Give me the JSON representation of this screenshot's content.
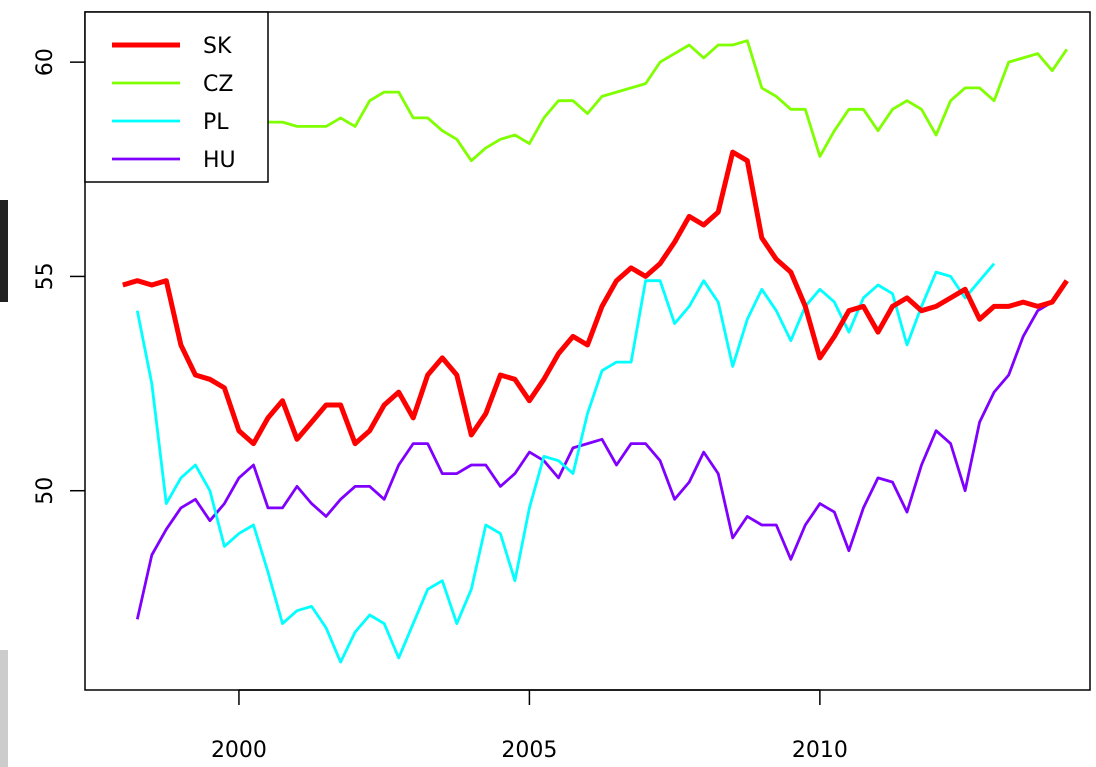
{
  "chart_data": {
    "type": "line",
    "x": [
      1998,
      1998.25,
      1998.5,
      1998.75,
      1999,
      1999.25,
      1999.5,
      1999.75,
      2000,
      2000.25,
      2000.5,
      2000.75,
      2001,
      2001.25,
      2001.5,
      2001.75,
      2002,
      2002.25,
      2002.5,
      2002.75,
      2003,
      2003.25,
      2003.5,
      2003.75,
      2004,
      2004.25,
      2004.5,
      2004.75,
      2005,
      2005.25,
      2005.5,
      2005.75,
      2006,
      2006.25,
      2006.5,
      2006.75,
      2007,
      2007.25,
      2007.5,
      2007.75,
      2008,
      2008.25,
      2008.5,
      2008.75,
      2009,
      2009.25,
      2009.5,
      2009.75,
      2010,
      2010.25,
      2010.5,
      2010.75,
      2011,
      2011.25,
      2011.5,
      2011.75,
      2012,
      2012.25,
      2012.5,
      2012.75,
      2013,
      2013.25,
      2013.5,
      2013.75,
      2014,
      2014.25
    ],
    "series": [
      {
        "name": "SK",
        "color": "#ff0000",
        "values": [
          54.8,
          54.9,
          54.8,
          54.9,
          53.4,
          52.7,
          52.6,
          52.4,
          51.4,
          51.1,
          51.7,
          52.1,
          51.2,
          51.6,
          52.0,
          52.0,
          51.1,
          51.4,
          52.0,
          52.3,
          51.7,
          52.7,
          53.1,
          52.7,
          51.3,
          51.8,
          52.7,
          52.6,
          52.1,
          52.6,
          53.2,
          53.6,
          53.4,
          54.3,
          54.9,
          55.2,
          55.0,
          55.3,
          55.8,
          56.4,
          56.2,
          56.5,
          57.9,
          57.7,
          55.9,
          55.4,
          55.1,
          54.3,
          53.1,
          53.6,
          54.2,
          54.3,
          53.7,
          54.3,
          54.5,
          54.2,
          54.3,
          54.5,
          54.7,
          54.0,
          54.3,
          54.3,
          54.4,
          54.3,
          54.4,
          54.9
        ]
      },
      {
        "name": "CZ",
        "color": "#7fff00",
        "values": [
          58.6,
          58.7,
          58.6,
          58.5,
          58.4,
          58.5,
          58.6,
          58.6,
          58.6,
          58.6,
          58.6,
          58.6,
          58.5,
          58.5,
          58.5,
          58.7,
          58.5,
          59.1,
          59.3,
          59.3,
          58.7,
          58.7,
          58.4,
          58.2,
          57.7,
          58.0,
          58.2,
          58.3,
          58.1,
          58.7,
          59.1,
          59.1,
          58.8,
          59.2,
          59.3,
          59.4,
          59.5,
          60.0,
          60.2,
          60.4,
          60.1,
          60.4,
          60.4,
          60.5,
          59.4,
          59.2,
          58.9,
          58.9,
          57.8,
          58.4,
          58.9,
          58.9,
          58.4,
          58.9,
          59.1,
          58.9,
          58.3,
          59.1,
          59.4,
          59.4,
          59.1,
          60.0,
          60.1,
          60.2,
          59.8,
          60.3
        ]
      },
      {
        "name": "PL",
        "color": "#00ffff",
        "values": [
          null,
          54.2,
          52.5,
          49.7,
          50.3,
          50.6,
          50.0,
          48.7,
          49.0,
          49.2,
          48.1,
          46.9,
          47.2,
          47.3,
          46.8,
          46.0,
          46.7,
          47.1,
          46.9,
          46.1,
          46.9,
          47.7,
          47.9,
          46.9,
          47.7,
          49.2,
          49.0,
          47.9,
          49.6,
          50.8,
          50.7,
          50.4,
          51.8,
          52.8,
          53.0,
          53.0,
          54.9,
          54.9,
          53.9,
          54.3,
          54.9,
          54.4,
          52.9,
          54.0,
          54.7,
          54.2,
          53.5,
          54.3,
          54.7,
          54.4,
          53.7,
          54.5,
          54.8,
          54.6,
          53.4,
          54.3,
          55.1,
          55.0,
          54.5,
          54.9,
          55.3,
          null,
          null,
          null,
          null,
          null
        ]
      },
      {
        "name": "HU",
        "color": "#8000ff",
        "values": [
          null,
          47.0,
          48.5,
          49.1,
          49.6,
          49.8,
          49.3,
          49.7,
          50.3,
          50.6,
          49.6,
          49.6,
          50.1,
          49.7,
          49.4,
          49.8,
          50.1,
          50.1,
          49.8,
          50.6,
          51.1,
          51.1,
          50.4,
          50.4,
          50.6,
          50.6,
          50.1,
          50.4,
          50.9,
          50.7,
          50.3,
          51.0,
          51.1,
          51.2,
          50.6,
          51.1,
          51.1,
          50.7,
          49.8,
          50.2,
          50.9,
          50.4,
          48.9,
          49.4,
          49.2,
          49.2,
          48.4,
          49.2,
          49.7,
          49.5,
          48.6,
          49.6,
          50.3,
          50.2,
          49.5,
          50.6,
          51.4,
          51.1,
          50.0,
          51.6,
          52.3,
          52.7,
          53.6,
          54.2,
          54.4,
          null
        ]
      }
    ],
    "xlim": [
      1997.35,
      2014.65
    ],
    "ylim": [
      45.35,
      61.17
    ],
    "xticks": [
      2000,
      2005,
      2010
    ],
    "yticks": [
      50,
      55,
      60
    ],
    "legend": "topleft"
  }
}
